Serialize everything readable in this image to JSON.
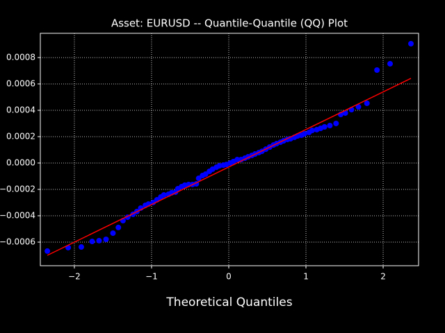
{
  "chart_data": {
    "type": "scatter",
    "title": "Asset: EURUSD -- Quantile-Quantile (QQ) Plot",
    "xlabel": "Theoretical Quantiles",
    "xlim": [
      -2.441,
      2.459
    ],
    "ylim": [
      -0.000779,
      0.000984
    ],
    "xticks": [
      {
        "value": -2,
        "label": "−2"
      },
      {
        "value": -1,
        "label": "−1"
      },
      0,
      1,
      2
    ],
    "yticks": [
      {
        "value": -0.0006,
        "label": "−0.0006"
      },
      {
        "value": -0.0004,
        "label": "−0.0004"
      },
      {
        "value": -0.0002,
        "label": "−0.0002"
      },
      {
        "value": 0,
        "label": "0.0000"
      },
      0.0002,
      0.0004,
      0.0006,
      0.0008
    ],
    "grid": true,
    "series": [
      {
        "color": "#0000ff",
        "x": [
          -2.35,
          -2.08,
          -1.91,
          -1.77,
          -1.68,
          -1.59,
          -1.5,
          -1.43,
          -1.37,
          -1.31,
          -1.24,
          -1.19,
          -1.14,
          -1.08,
          -1.04,
          -0.98,
          -0.93,
          -0.88,
          -0.84,
          -0.78,
          -0.74,
          -0.69,
          -0.66,
          -0.61,
          -0.57,
          -0.52,
          -0.47,
          -0.42,
          -0.39,
          -0.34,
          -0.3,
          -0.25,
          -0.21,
          -0.16,
          -0.12,
          -0.07,
          -0.03,
          0.02,
          0.06,
          0.11,
          0.16,
          0.21,
          0.25,
          0.3,
          0.34,
          0.39,
          0.43,
          0.48,
          0.53,
          0.58,
          0.62,
          0.67,
          0.71,
          0.76,
          0.8,
          0.85,
          0.89,
          0.94,
          0.98,
          1.04,
          1.08,
          1.14,
          1.19,
          1.24,
          1.31,
          1.39,
          1.45,
          1.51,
          1.59,
          1.68,
          1.79,
          1.92,
          2.09,
          2.36
        ],
        "values": [
          -0.000668,
          -0.000642,
          -0.000637,
          -0.000595,
          -0.000589,
          -0.000579,
          -0.000532,
          -0.000489,
          -0.000437,
          -0.000411,
          -0.000389,
          -0.000368,
          -0.000342,
          -0.000321,
          -0.000311,
          -0.0003,
          -0.000279,
          -0.000258,
          -0.000242,
          -0.000237,
          -0.000226,
          -0.000221,
          -0.000195,
          -0.000179,
          -0.000168,
          -0.000163,
          -0.000163,
          -0.000158,
          -0.000116,
          -9.5e-05,
          -8.4e-05,
          -6.3e-05,
          -4.7e-05,
          -3.2e-05,
          -2.1e-05,
          -1.6e-05,
          -1.1e-05,
          0,
          1.1e-05,
          2.6e-05,
          2.6e-05,
          3.7e-05,
          4.7e-05,
          5.8e-05,
          6.8e-05,
          7.9e-05,
          8.9e-05,
          0.000105,
          0.000121,
          0.000137,
          0.000147,
          0.000158,
          0.000168,
          0.000179,
          0.000184,
          0.000195,
          0.000205,
          0.000211,
          0.000221,
          0.000232,
          0.000247,
          0.000253,
          0.000263,
          0.000274,
          0.000284,
          0.0003,
          0.000368,
          0.000379,
          0.000405,
          0.000426,
          0.000453,
          0.000705,
          0.000753,
          0.000905
        ]
      }
    ],
    "fit_line": {
      "color": "#ff0000",
      "x": [
        -2.35,
        2.36
      ],
      "values": [
        -0.0007,
        0.000642
      ]
    }
  }
}
